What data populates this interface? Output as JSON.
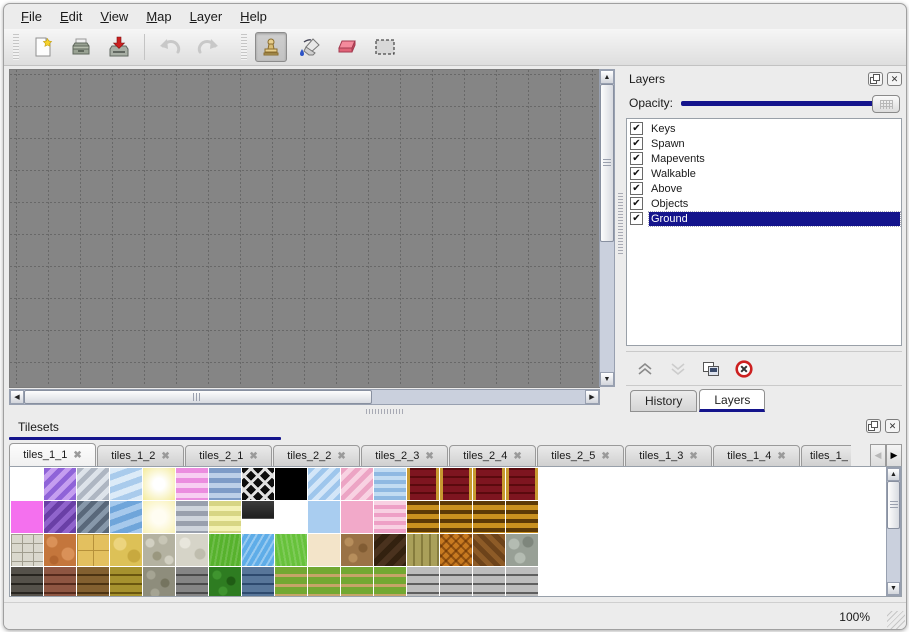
{
  "menu": {
    "items": [
      "File",
      "Edit",
      "View",
      "Map",
      "Layer",
      "Help"
    ]
  },
  "toolbar": {
    "buttons": [
      "new",
      "open",
      "save",
      "undo",
      "redo",
      "stamp",
      "fill",
      "eraser",
      "rect-select"
    ],
    "active_tool": "stamp",
    "disabled_buttons": [
      "undo",
      "redo"
    ]
  },
  "icons": {
    "check": "✔",
    "close": "✕",
    "tab_close": "✖",
    "arrow_up": "▲",
    "arrow_down": "▼",
    "arrow_left": "◀",
    "arrow_right": "▶"
  },
  "layers_panel": {
    "title": "Layers",
    "opacity_label": "Opacity:",
    "opacity_percent": 100,
    "layers": [
      {
        "name": "Keys",
        "checked": true,
        "selected": false
      },
      {
        "name": "Spawn",
        "checked": true,
        "selected": false
      },
      {
        "name": "Mapevents",
        "checked": true,
        "selected": false
      },
      {
        "name": "Walkable",
        "checked": true,
        "selected": false
      },
      {
        "name": "Above",
        "checked": true,
        "selected": false
      },
      {
        "name": "Objects",
        "checked": true,
        "selected": false
      },
      {
        "name": "Ground",
        "checked": true,
        "selected": true
      }
    ],
    "actions": [
      "raise-layer",
      "lower-layer",
      "duplicate-layer",
      "delete-layer"
    ],
    "tabs": [
      {
        "label": "History",
        "active": false
      },
      {
        "label": "Layers",
        "active": true
      }
    ]
  },
  "tilesets_panel": {
    "title": "Tilesets",
    "tabs": [
      {
        "label": "tiles_1_1",
        "active": true,
        "truncated": false
      },
      {
        "label": "tiles_1_2",
        "active": false,
        "truncated": false
      },
      {
        "label": "tiles_2_1",
        "active": false,
        "truncated": false
      },
      {
        "label": "tiles_2_2",
        "active": false,
        "truncated": false
      },
      {
        "label": "tiles_2_3",
        "active": false,
        "truncated": false
      },
      {
        "label": "tiles_2_4",
        "active": false,
        "truncated": false
      },
      {
        "label": "tiles_2_5",
        "active": false,
        "truncated": false
      },
      {
        "label": "tiles_1_3",
        "active": false,
        "truncated": false
      },
      {
        "label": "tiles_1_4",
        "active": false,
        "truncated": false
      },
      {
        "label": "tiles_1_",
        "active": false,
        "truncated": true
      }
    ],
    "tile_rows": [
      [
        "empty",
        "purple-diag",
        "silver-diag",
        "water-pale",
        "glow-yellow",
        "pink-hstripes",
        "blue-hstripes",
        "lattice",
        "black",
        "blue-diag",
        "pink-diag",
        "blue-waves",
        "red-gold",
        "red-gold",
        "red-gold",
        "red-gold"
      ],
      [
        "magenta",
        "purple-dark-diag",
        "gray-dark-diag",
        "water-mid",
        "pale-yellow",
        "gray-hstripes",
        "yellow-hstripes",
        "dark-plate",
        "empty",
        "lightblue",
        "lightpink",
        "pink-waves",
        "brown-gold",
        "brown-gold",
        "brown-gold",
        "brown-gold"
      ],
      [
        "stone-blocks",
        "cobble-orange",
        "tile-tan",
        "stone-yellow",
        "pebble-gray",
        "stone-light",
        "grass",
        "water-sparkle",
        "grass-bright",
        "cream",
        "pebble-brown",
        "wood-dark",
        "planks-olive",
        "weave-orange",
        "herringbone",
        "stones-gray"
      ],
      [
        "brick-darkgray",
        "brick-redbrown",
        "brick-brown",
        "stone-dyellow",
        "wall-pebble",
        "brick-gray",
        "hedge",
        "brick-blue",
        "grass-path",
        "grass-path",
        "grass-path",
        "grass-path",
        "plank-gray",
        "plank-gray",
        "plank-gray",
        "plank-gray"
      ]
    ]
  },
  "status_bar": {
    "zoom_level": "100%"
  },
  "colors": {
    "accent_navy": "#14148c",
    "selection_bg": "#14148c",
    "canvas_gray": "#858585",
    "delete_red": "#cc2020"
  }
}
